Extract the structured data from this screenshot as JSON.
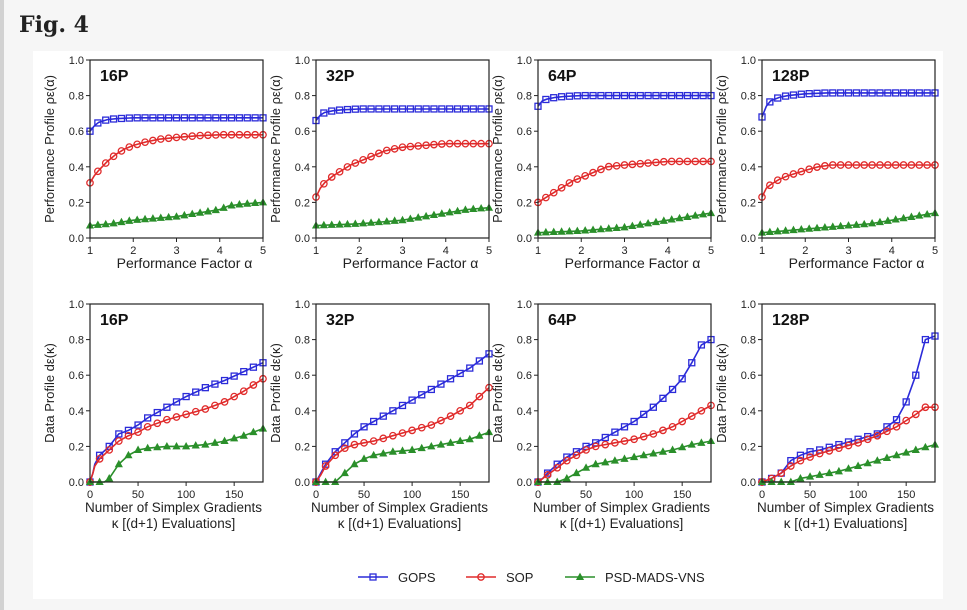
{
  "figure": {
    "label": "Fig. 4"
  },
  "legend": {
    "entries": [
      {
        "name": "GOPS",
        "color": "#2b2bd9",
        "marker": "square"
      },
      {
        "name": "SOP",
        "color": "#e02b2b",
        "marker": "circle"
      },
      {
        "name": "PSD-MADS-VNS",
        "color": "#2a8f2a",
        "marker": "triangle"
      }
    ]
  },
  "chart_data": [
    {
      "type": "line",
      "title": "16P",
      "xlabel": "Performance Factor α",
      "ylabel": "Performance Profile ρε(α)",
      "xlim": [
        1,
        5
      ],
      "ylim": [
        0,
        1
      ],
      "xticks": [
        1,
        2,
        3,
        4,
        5
      ],
      "yticks": [
        0,
        0.2,
        0.4,
        0.6,
        0.8,
        1.0
      ],
      "series": [
        {
          "name": "GOPS",
          "x": [
            1,
            1.1,
            1.2,
            1.4,
            1.6,
            2,
            2.5,
            3,
            3.5,
            4,
            4.5,
            5
          ],
          "y": [
            0.6,
            0.63,
            0.65,
            0.665,
            0.67,
            0.675,
            0.675,
            0.675,
            0.675,
            0.675,
            0.675,
            0.675
          ]
        },
        {
          "name": "SOP",
          "x": [
            1,
            1.1,
            1.2,
            1.4,
            1.6,
            1.8,
            2,
            2.3,
            2.6,
            3,
            3.5,
            4,
            4.5,
            5
          ],
          "y": [
            0.31,
            0.35,
            0.38,
            0.43,
            0.47,
            0.5,
            0.52,
            0.54,
            0.555,
            0.565,
            0.575,
            0.58,
            0.58,
            0.58
          ]
        },
        {
          "name": "PSD-MADS-VNS",
          "x": [
            1,
            1.5,
            2,
            2.5,
            3,
            3.5,
            4,
            4.2,
            4.5,
            5
          ],
          "y": [
            0.07,
            0.08,
            0.1,
            0.11,
            0.12,
            0.14,
            0.16,
            0.18,
            0.19,
            0.2
          ]
        }
      ]
    },
    {
      "type": "line",
      "title": "32P",
      "xlabel": "Performance Factor α",
      "ylabel": "Performance Profile ρε(α)",
      "xlim": [
        1,
        5
      ],
      "ylim": [
        0,
        1
      ],
      "xticks": [
        1,
        2,
        3,
        4,
        5
      ],
      "yticks": [
        0,
        0.2,
        0.4,
        0.6,
        0.8,
        1.0
      ],
      "series": [
        {
          "name": "GOPS",
          "x": [
            1,
            1.1,
            1.2,
            1.4,
            1.6,
            2,
            2.5,
            3,
            3.5,
            4,
            4.5,
            5
          ],
          "y": [
            0.66,
            0.69,
            0.705,
            0.715,
            0.72,
            0.725,
            0.725,
            0.725,
            0.725,
            0.725,
            0.725,
            0.725
          ]
        },
        {
          "name": "SOP",
          "x": [
            1,
            1.1,
            1.2,
            1.4,
            1.6,
            1.8,
            2,
            2.3,
            2.6,
            3,
            3.5,
            4,
            4.5,
            5
          ],
          "y": [
            0.23,
            0.28,
            0.31,
            0.35,
            0.38,
            0.41,
            0.43,
            0.46,
            0.49,
            0.51,
            0.52,
            0.53,
            0.53,
            0.53
          ]
        },
        {
          "name": "PSD-MADS-VNS",
          "x": [
            1,
            1.5,
            2,
            2.5,
            3,
            3.5,
            4,
            4.5,
            5
          ],
          "y": [
            0.07,
            0.075,
            0.08,
            0.09,
            0.1,
            0.12,
            0.14,
            0.16,
            0.17
          ]
        }
      ]
    },
    {
      "type": "line",
      "title": "64P",
      "xlabel": "Performance Factor α",
      "ylabel": "Performance Profile ρε(α)",
      "xlim": [
        1,
        5
      ],
      "ylim": [
        0,
        1
      ],
      "xticks": [
        1,
        2,
        3,
        4,
        5
      ],
      "yticks": [
        0,
        0.2,
        0.4,
        0.6,
        0.8,
        1.0
      ],
      "series": [
        {
          "name": "GOPS",
          "x": [
            1,
            1.1,
            1.2,
            1.4,
            1.6,
            2,
            2.5,
            3,
            3.5,
            4,
            4.5,
            5
          ],
          "y": [
            0.74,
            0.77,
            0.78,
            0.79,
            0.795,
            0.8,
            0.8,
            0.8,
            0.8,
            0.8,
            0.8,
            0.8
          ]
        },
        {
          "name": "SOP",
          "x": [
            1,
            1.2,
            1.4,
            1.6,
            1.8,
            2,
            2.3,
            2.6,
            3,
            3.5,
            4,
            4.5,
            5
          ],
          "y": [
            0.2,
            0.23,
            0.26,
            0.29,
            0.32,
            0.34,
            0.37,
            0.4,
            0.41,
            0.42,
            0.43,
            0.43,
            0.43
          ]
        },
        {
          "name": "PSD-MADS-VNS",
          "x": [
            1,
            1.5,
            2,
            2.5,
            3,
            3.5,
            4,
            4.5,
            5
          ],
          "y": [
            0.03,
            0.035,
            0.04,
            0.05,
            0.06,
            0.08,
            0.1,
            0.12,
            0.14
          ]
        }
      ]
    },
    {
      "type": "line",
      "title": "128P",
      "xlabel": "Performance Factor α",
      "ylabel": "Performance Profile ρε(α)",
      "xlim": [
        1,
        5
      ],
      "ylim": [
        0,
        1
      ],
      "xticks": [
        1,
        2,
        3,
        4,
        5
      ],
      "yticks": [
        0,
        0.2,
        0.4,
        0.6,
        0.8,
        1.0
      ],
      "series": [
        {
          "name": "GOPS",
          "x": [
            1,
            1.1,
            1.2,
            1.4,
            1.6,
            2,
            2.5,
            3,
            3.5,
            4,
            4.5,
            5
          ],
          "y": [
            0.68,
            0.74,
            0.77,
            0.79,
            0.8,
            0.81,
            0.815,
            0.815,
            0.815,
            0.815,
            0.815,
            0.815
          ]
        },
        {
          "name": "SOP",
          "x": [
            1,
            1.1,
            1.2,
            1.4,
            1.6,
            2,
            2.3,
            2.6,
            3,
            3.5,
            4,
            4.5,
            5
          ],
          "y": [
            0.23,
            0.28,
            0.3,
            0.33,
            0.35,
            0.38,
            0.4,
            0.41,
            0.41,
            0.41,
            0.41,
            0.41,
            0.41
          ]
        },
        {
          "name": "PSD-MADS-VNS",
          "x": [
            1,
            1.5,
            2,
            2.5,
            3,
            3.5,
            4,
            4.5,
            5
          ],
          "y": [
            0.03,
            0.04,
            0.05,
            0.06,
            0.07,
            0.08,
            0.1,
            0.12,
            0.14
          ]
        }
      ]
    },
    {
      "type": "line",
      "title": "16P",
      "xlabel": "Number of Simplex Gradients",
      "xlabel2": "κ [(d+1) Evaluations]",
      "ylabel": "Data Profile dε(κ)",
      "xlim": [
        0,
        180
      ],
      "ylim": [
        0,
        1
      ],
      "xticks": [
        0,
        50,
        100,
        150
      ],
      "yticks": [
        0,
        0.2,
        0.4,
        0.6,
        0.8,
        1.0
      ],
      "series": [
        {
          "name": "GOPS",
          "x": [
            0,
            3,
            5,
            10,
            20,
            30,
            40,
            50,
            60,
            80,
            100,
            120,
            140,
            160,
            180
          ],
          "y": [
            0,
            0.05,
            0.1,
            0.15,
            0.2,
            0.27,
            0.29,
            0.32,
            0.36,
            0.42,
            0.48,
            0.53,
            0.57,
            0.62,
            0.67
          ]
        },
        {
          "name": "SOP",
          "x": [
            0,
            3,
            5,
            10,
            20,
            30,
            40,
            50,
            60,
            80,
            100,
            120,
            140,
            160,
            180
          ],
          "y": [
            0,
            0.05,
            0.09,
            0.13,
            0.18,
            0.23,
            0.26,
            0.28,
            0.31,
            0.35,
            0.38,
            0.41,
            0.45,
            0.51,
            0.58
          ]
        },
        {
          "name": "PSD-MADS-VNS",
          "x": [
            0,
            15,
            20,
            25,
            30,
            40,
            50,
            60,
            80,
            100,
            120,
            140,
            160,
            180
          ],
          "y": [
            0,
            0,
            0.02,
            0.06,
            0.1,
            0.15,
            0.18,
            0.19,
            0.2,
            0.2,
            0.21,
            0.23,
            0.26,
            0.3
          ]
        }
      ]
    },
    {
      "type": "line",
      "title": "32P",
      "xlabel": "Number of Simplex Gradients",
      "xlabel2": "κ [(d+1) Evaluations]",
      "ylabel": "Data Profile dε(κ)",
      "xlim": [
        0,
        180
      ],
      "ylim": [
        0,
        1
      ],
      "xticks": [
        0,
        50,
        100,
        150
      ],
      "yticks": [
        0,
        0.2,
        0.4,
        0.6,
        0.8,
        1.0
      ],
      "series": [
        {
          "name": "GOPS",
          "x": [
            0,
            5,
            10,
            20,
            30,
            40,
            50,
            60,
            80,
            100,
            120,
            140,
            160,
            180
          ],
          "y": [
            0,
            0.05,
            0.1,
            0.17,
            0.22,
            0.27,
            0.31,
            0.34,
            0.4,
            0.46,
            0.52,
            0.58,
            0.64,
            0.72
          ]
        },
        {
          "name": "SOP",
          "x": [
            0,
            5,
            10,
            20,
            30,
            40,
            50,
            60,
            80,
            100,
            120,
            140,
            160,
            180
          ],
          "y": [
            0,
            0.04,
            0.09,
            0.15,
            0.19,
            0.21,
            0.22,
            0.23,
            0.26,
            0.29,
            0.32,
            0.37,
            0.43,
            0.53
          ]
        },
        {
          "name": "PSD-MADS-VNS",
          "x": [
            0,
            20,
            30,
            40,
            50,
            60,
            80,
            100,
            120,
            140,
            160,
            180
          ],
          "y": [
            0,
            0,
            0.05,
            0.1,
            0.13,
            0.15,
            0.17,
            0.18,
            0.2,
            0.22,
            0.24,
            0.28
          ]
        }
      ]
    },
    {
      "type": "line",
      "title": "64P",
      "xlabel": "Number of Simplex Gradients",
      "xlabel2": "κ [(d+1) Evaluations]",
      "ylabel": "Data Profile dε(κ)",
      "xlim": [
        0,
        180
      ],
      "ylim": [
        0,
        1
      ],
      "xticks": [
        0,
        50,
        100,
        150
      ],
      "yticks": [
        0,
        0.2,
        0.4,
        0.6,
        0.8,
        1.0
      ],
      "series": [
        {
          "name": "GOPS",
          "x": [
            0,
            5,
            10,
            20,
            30,
            40,
            50,
            60,
            80,
            100,
            120,
            140,
            150,
            160,
            170,
            180
          ],
          "y": [
            0,
            0.02,
            0.05,
            0.1,
            0.14,
            0.17,
            0.2,
            0.22,
            0.28,
            0.34,
            0.42,
            0.52,
            0.58,
            0.67,
            0.77,
            0.8
          ]
        },
        {
          "name": "SOP",
          "x": [
            0,
            5,
            10,
            20,
            30,
            40,
            50,
            60,
            80,
            100,
            120,
            140,
            160,
            180
          ],
          "y": [
            0,
            0.02,
            0.04,
            0.08,
            0.12,
            0.15,
            0.18,
            0.2,
            0.22,
            0.24,
            0.27,
            0.31,
            0.37,
            0.43
          ]
        },
        {
          "name": "PSD-MADS-VNS",
          "x": [
            0,
            20,
            30,
            40,
            50,
            60,
            80,
            100,
            120,
            140,
            160,
            180
          ],
          "y": [
            0,
            0,
            0.02,
            0.05,
            0.08,
            0.1,
            0.12,
            0.14,
            0.16,
            0.18,
            0.21,
            0.23
          ]
        }
      ]
    },
    {
      "type": "line",
      "title": "128P",
      "xlabel": "Number of Simplex Gradients",
      "xlabel2": "κ [(d+1) Evaluations]",
      "ylabel": "Data Profile dε(κ)",
      "xlim": [
        0,
        180
      ],
      "ylim": [
        0,
        1
      ],
      "xticks": [
        0,
        50,
        100,
        150
      ],
      "yticks": [
        0,
        0.2,
        0.4,
        0.6,
        0.8,
        1.0
      ],
      "series": [
        {
          "name": "GOPS",
          "x": [
            0,
            10,
            20,
            30,
            40,
            50,
            60,
            80,
            100,
            120,
            140,
            150,
            160,
            165,
            170,
            180
          ],
          "y": [
            0,
            0.02,
            0.05,
            0.12,
            0.15,
            0.17,
            0.18,
            0.21,
            0.24,
            0.27,
            0.35,
            0.45,
            0.6,
            0.7,
            0.8,
            0.82
          ]
        },
        {
          "name": "SOP",
          "x": [
            0,
            10,
            20,
            30,
            40,
            50,
            60,
            80,
            100,
            120,
            140,
            160,
            170,
            180
          ],
          "y": [
            0,
            0.02,
            0.05,
            0.09,
            0.12,
            0.14,
            0.16,
            0.19,
            0.22,
            0.26,
            0.31,
            0.38,
            0.42,
            0.42
          ]
        },
        {
          "name": "PSD-MADS-VNS",
          "x": [
            0,
            30,
            40,
            50,
            60,
            80,
            100,
            120,
            140,
            160,
            180
          ],
          "y": [
            0,
            0,
            0.02,
            0.03,
            0.04,
            0.06,
            0.09,
            0.12,
            0.15,
            0.18,
            0.21
          ]
        }
      ]
    }
  ]
}
